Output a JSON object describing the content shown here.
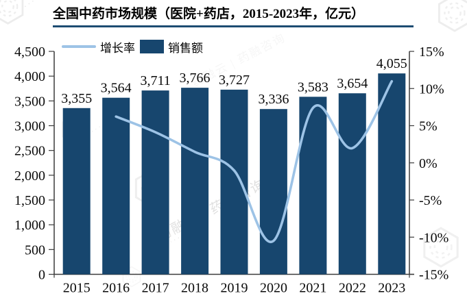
{
  "title": "全国中药市场规模（医院+药店，2015-2023年，亿元）",
  "legend": {
    "line_label": "增长率",
    "bar_label": "销售额"
  },
  "watermark": {
    "brand_text": "药融云 | 药融咨询",
    "dots": "·······"
  },
  "colors": {
    "bar": "#17466e",
    "line": "#9dc3e6",
    "title_underline": "#1d4c72",
    "axis": "#3a3a3a"
  },
  "chart_data": {
    "type": "bar",
    "subtype": "bar+line combo, dual axis",
    "title": "全国中药市场规模（医院+药店，2015-2023年，亿元）",
    "categories": [
      "2015",
      "2016",
      "2017",
      "2018",
      "2019",
      "2020",
      "2021",
      "2022",
      "2023"
    ],
    "series": [
      {
        "name": "销售额",
        "type": "bar",
        "axis": "left",
        "unit": "亿元",
        "color": "#17466e",
        "values": [
          3355,
          3564,
          3711,
          3766,
          3727,
          3336,
          3583,
          3654,
          4055
        ],
        "data_labels": [
          "3,355",
          "3,564",
          "3,711",
          "3,766",
          "3,727",
          "3,336",
          "3,583",
          "3,654",
          "4,055"
        ]
      },
      {
        "name": "增长率",
        "type": "line",
        "axis": "right",
        "unit": "%",
        "color": "#9dc3e6",
        "smooth": true,
        "values": [
          null,
          6.23,
          4.12,
          1.48,
          -1.04,
          -10.49,
          7.4,
          1.98,
          10.97
        ]
      }
    ],
    "left_axis": {
      "min": 0,
      "max": 4500,
      "step": 500,
      "tick_labels": [
        "4,500",
        "4,000",
        "3,500",
        "3,000",
        "2,500",
        "2,000",
        "1,500",
        "1,000",
        "500",
        "0"
      ]
    },
    "right_axis": {
      "min": -15,
      "max": 15,
      "step": 5,
      "tick_labels": [
        "15%",
        "10%",
        "5%",
        "0%",
        "-5%",
        "-10%",
        "-15%"
      ]
    },
    "x_axis": {
      "tick_labels": [
        "2015",
        "2016",
        "2017",
        "2018",
        "2019",
        "2020",
        "2021",
        "2022",
        "2023"
      ]
    },
    "grid": false,
    "legend_position": "top-left"
  }
}
